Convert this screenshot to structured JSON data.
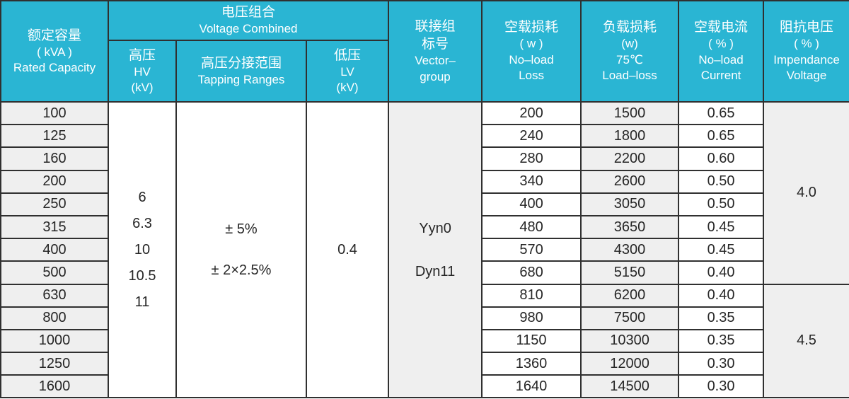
{
  "header": {
    "rated_capacity": {
      "zh": "额定容量",
      "unit": "( kVA )",
      "en": "Rated  Capacity"
    },
    "voltage_combined": {
      "zh": "电压组合",
      "en": "Voltage Combined"
    },
    "hv": {
      "zh": "高压",
      "en": "HV",
      "unit": "(kV)"
    },
    "tapping": {
      "zh": "高压分接范围",
      "en": "Tapping Ranges"
    },
    "lv": {
      "zh": "低压",
      "en": "LV",
      "unit": "(kV)"
    },
    "vector_group": {
      "zh1": "联接组",
      "zh2": "标号",
      "en1": "Vector–",
      "en2": "group"
    },
    "no_load_loss": {
      "zh": "空载损耗",
      "unit": "( w )",
      "en1": "No–load",
      "en2": "Loss"
    },
    "load_loss": {
      "zh": "负载损耗",
      "unit": "(w)",
      "temp": "75℃",
      "en": "Load–loss"
    },
    "no_load_current": {
      "zh": "空载电流",
      "unit": "( % )",
      "en1": "No–load",
      "en2": "Current"
    },
    "impedance": {
      "zh": "阻抗电压",
      "unit": "( % )",
      "en1": "Impendance",
      "en2": "Voltage"
    }
  },
  "shared": {
    "hv_values": [
      "6",
      "6.3",
      "10",
      "10.5",
      "11"
    ],
    "tapping_values": [
      "± 5%",
      "± 2×2.5%"
    ],
    "lv_value": "0.4",
    "vector_groups": [
      "Yyn0",
      "Dyn11"
    ],
    "impedance_groups": [
      {
        "value": "4.0",
        "row_span": 8
      },
      {
        "value": "4.5",
        "row_span": 5
      }
    ]
  },
  "rows": [
    {
      "capacity": "100",
      "no_load_loss": "200",
      "load_loss": "1500",
      "no_load_current": "0.65"
    },
    {
      "capacity": "125",
      "no_load_loss": "240",
      "load_loss": "1800",
      "no_load_current": "0.65"
    },
    {
      "capacity": "160",
      "no_load_loss": "280",
      "load_loss": "2200",
      "no_load_current": "0.60"
    },
    {
      "capacity": "200",
      "no_load_loss": "340",
      "load_loss": "2600",
      "no_load_current": "0.50"
    },
    {
      "capacity": "250",
      "no_load_loss": "400",
      "load_loss": "3050",
      "no_load_current": "0.50"
    },
    {
      "capacity": "315",
      "no_load_loss": "480",
      "load_loss": "3650",
      "no_load_current": "0.45"
    },
    {
      "capacity": "400",
      "no_load_loss": "570",
      "load_loss": "4300",
      "no_load_current": "0.45"
    },
    {
      "capacity": "500",
      "no_load_loss": "680",
      "load_loss": "5150",
      "no_load_current": "0.40"
    },
    {
      "capacity": "630",
      "no_load_loss": "810",
      "load_loss": "6200",
      "no_load_current": "0.40"
    },
    {
      "capacity": "800",
      "no_load_loss": "980",
      "load_loss": "7500",
      "no_load_current": "0.35"
    },
    {
      "capacity": "1000",
      "no_load_loss": "1150",
      "load_loss": "10300",
      "no_load_current": "0.35"
    },
    {
      "capacity": "1250",
      "no_load_loss": "1360",
      "load_loss": "12000",
      "no_load_current": "0.30"
    },
    {
      "capacity": "1600",
      "no_load_loss": "1640",
      "load_loss": "14500",
      "no_load_current": "0.30"
    }
  ],
  "colors": {
    "header_bg": "#2ab5d3",
    "header_text": "#ffffff",
    "shaded_column_bg": "#efefef",
    "border": "#303030",
    "text": "#262626"
  }
}
